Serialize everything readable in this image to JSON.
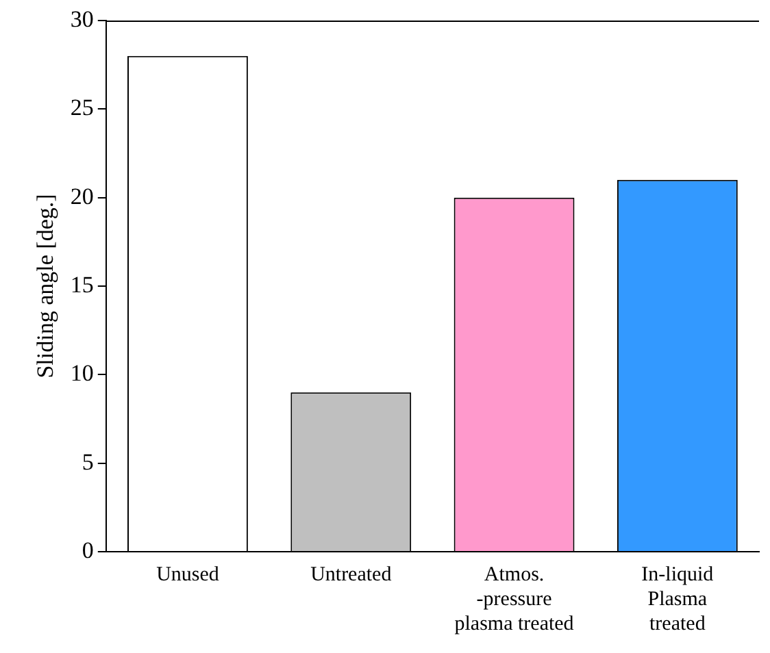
{
  "chart_data": {
    "type": "bar",
    "ylabel": "Sliding angle [deg.]",
    "categories": [
      "Unused",
      "Untreated",
      "Atmos.\n-pressure\nplasma treated",
      "In-liquid\nPlasma\ntreated"
    ],
    "values": [
      28,
      9,
      20,
      21
    ],
    "colors": [
      "#ffffff",
      "#bfbfbf",
      "#ff99cc",
      "#3399ff"
    ],
    "ylim": [
      0,
      30
    ],
    "yticks": [
      0,
      5,
      10,
      15,
      20,
      25,
      30
    ],
    "grid": false,
    "legend": false
  }
}
